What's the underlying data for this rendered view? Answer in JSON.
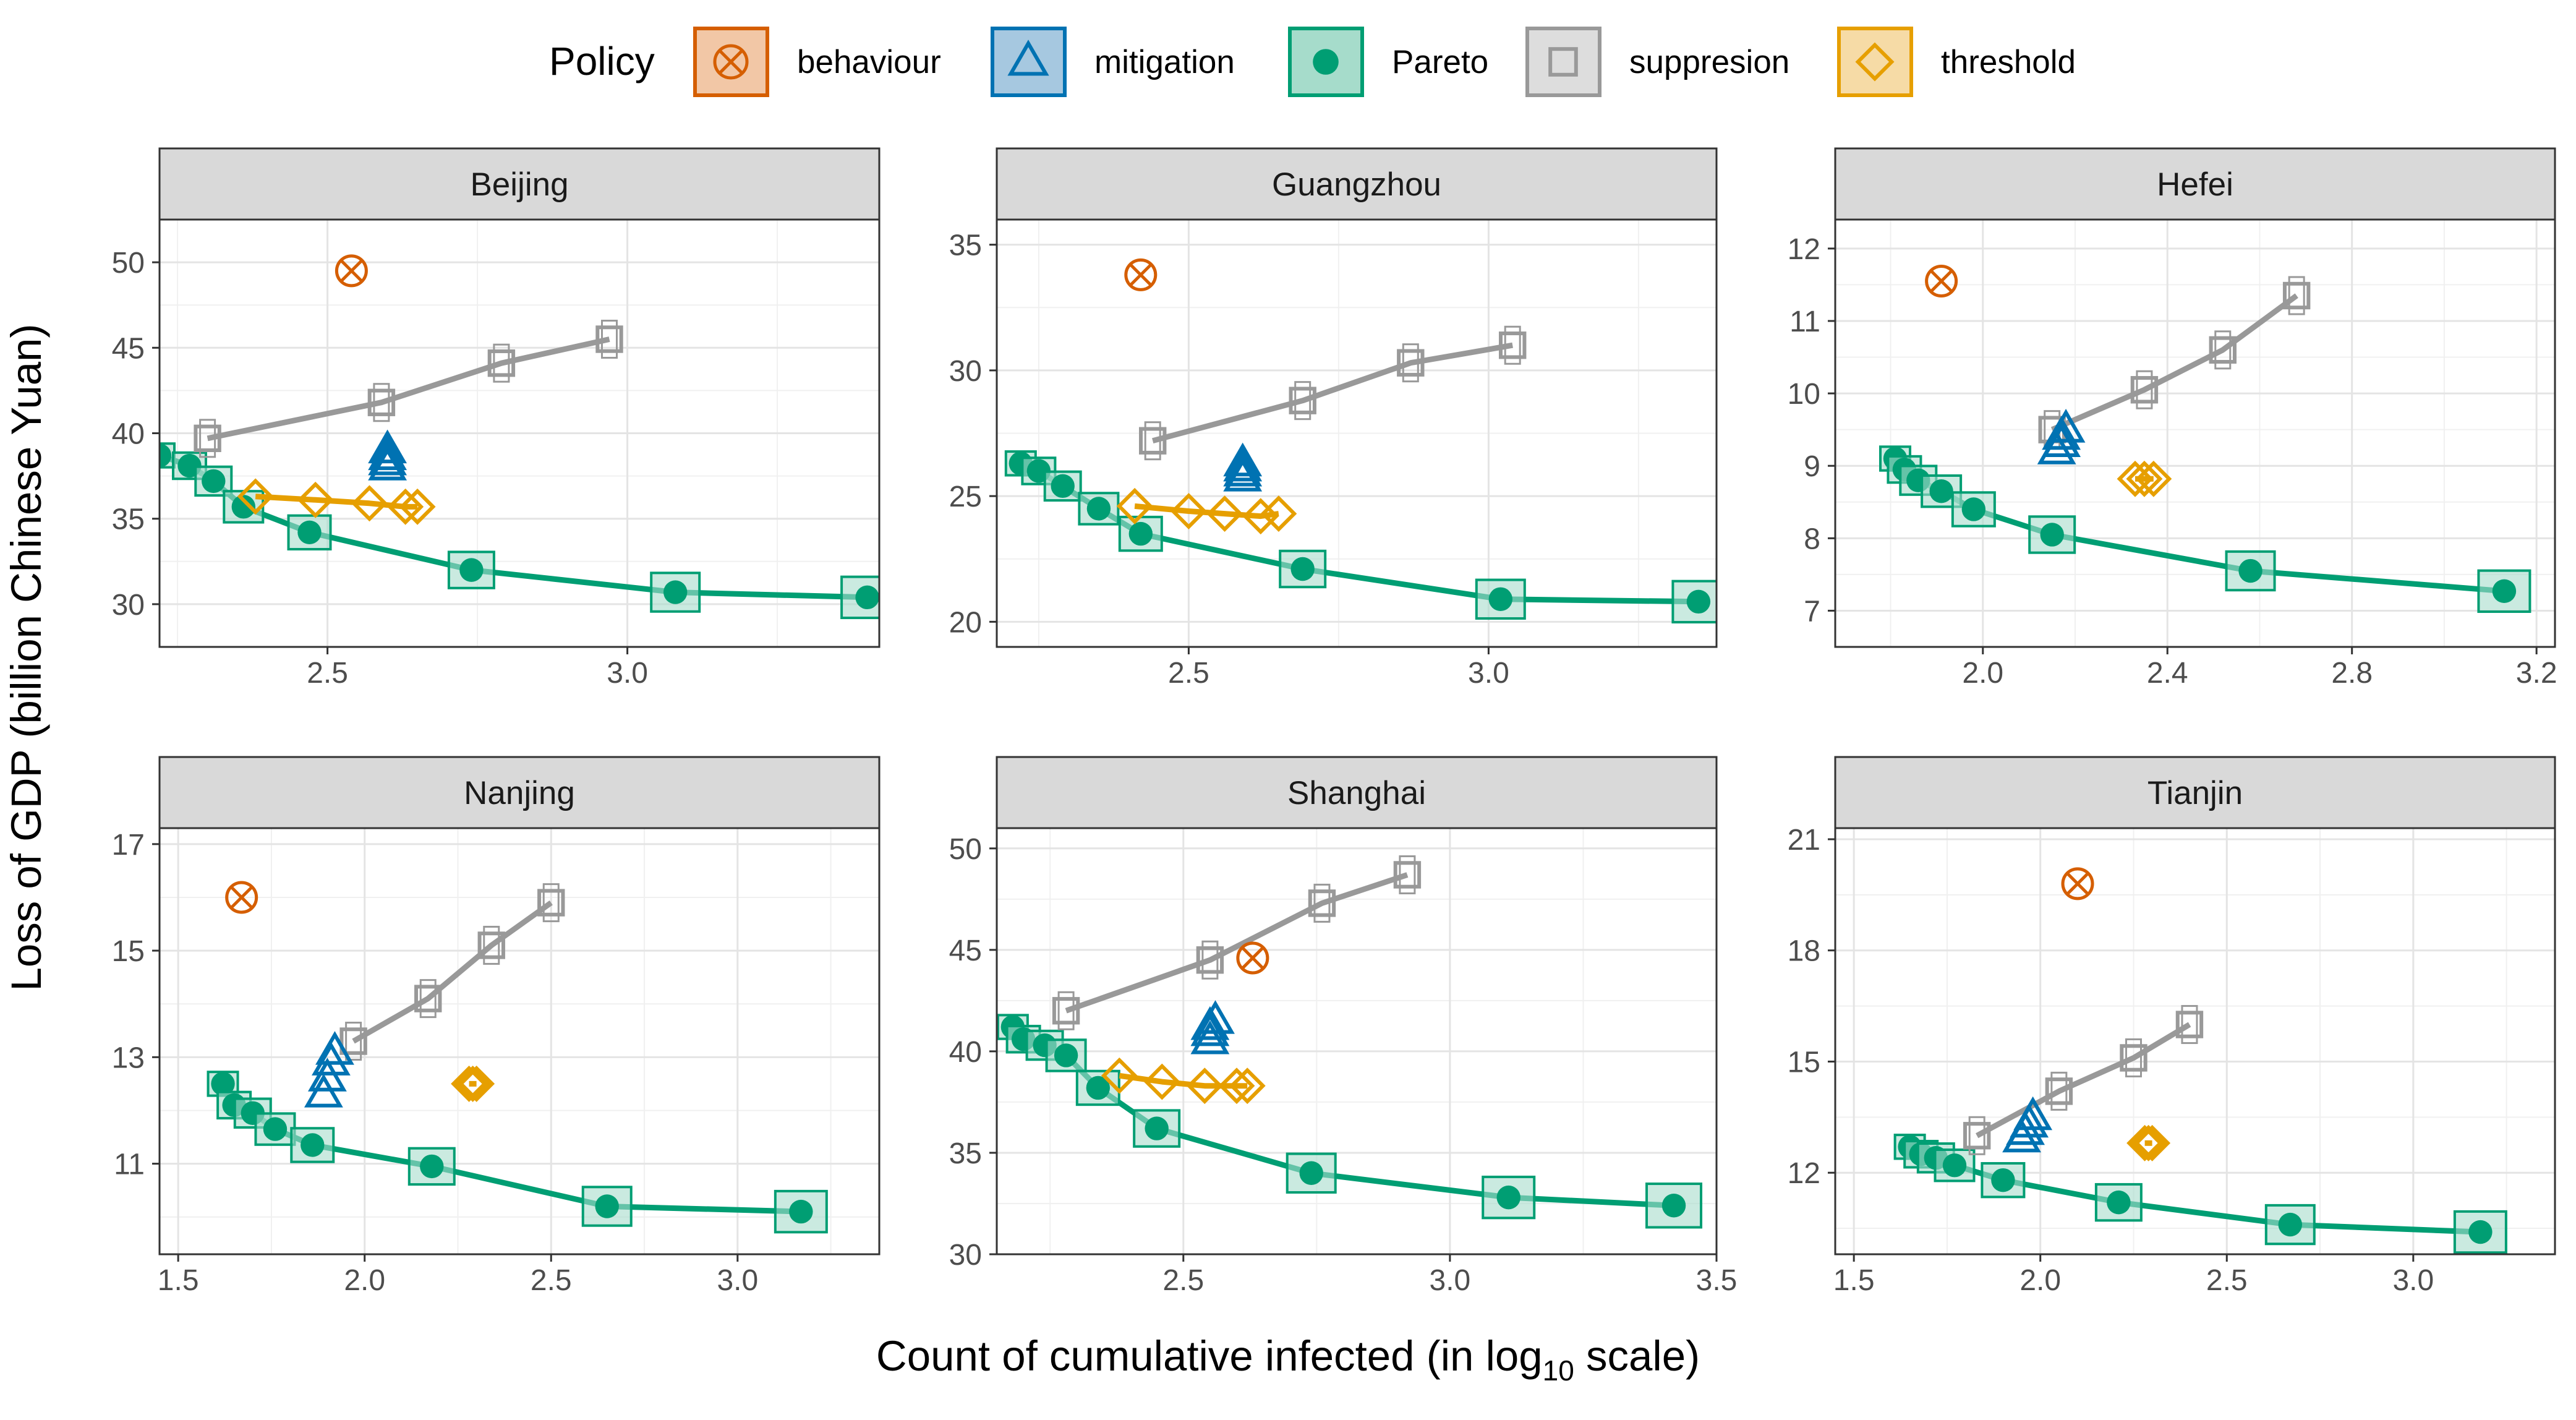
{
  "chart_data": {
    "type": "scatter",
    "title": "",
    "xlabel": "Count of cumulative infected (in log",
    "xlabel_sub": "10",
    "xlabel_suffix": " scale)",
    "ylabel": "Loss of GDP (billion Chinese Yuan)",
    "legend": {
      "title": "Policy",
      "placement": "top",
      "entries": [
        {
          "name": "behaviour",
          "color": "#D55E00",
          "fill": "#F2C7A6",
          "shape": "circle-x"
        },
        {
          "name": "mitigation",
          "color": "#0072B2",
          "fill": "#A6C8E0",
          "shape": "triangle"
        },
        {
          "name": "Pareto",
          "color": "#009E73",
          "fill": "#A6DCCB",
          "shape": "filled-circle"
        },
        {
          "name": "suppresion",
          "color": "#999999",
          "fill": "#DDDDDD",
          "shape": "square"
        },
        {
          "name": "threshold",
          "color": "#E69F00",
          "fill": "#F6DBA6",
          "shape": "diamond"
        }
      ]
    },
    "grid": true,
    "panels": [
      {
        "name": "Beijing",
        "xlim": [
          2.22,
          3.42
        ],
        "ylim": [
          27.5,
          52.5
        ],
        "xticks": [
          "2.5",
          "3.0"
        ],
        "xtick_values": [
          2.5,
          3.0
        ],
        "yticks": [
          "30",
          "35",
          "40",
          "45",
          "50"
        ],
        "ytick_values": [
          30,
          35,
          40,
          45,
          50
        ],
        "series": [
          {
            "name": "Pareto",
            "x": [
              2.22,
              2.27,
              2.31,
              2.36,
              2.47,
              2.74,
              3.08,
              3.4
            ],
            "y": [
              38.7,
              38.1,
              37.2,
              35.7,
              34.2,
              32.0,
              30.7,
              30.4
            ]
          },
          {
            "name": "suppresion",
            "x": [
              2.3,
              2.59,
              2.79,
              2.97
            ],
            "y": [
              39.7,
              41.8,
              44.1,
              45.5
            ]
          },
          {
            "name": "threshold",
            "x": [
              2.38,
              2.48,
              2.57,
              2.63,
              2.65
            ],
            "y": [
              36.3,
              36.1,
              35.9,
              35.7,
              35.7
            ]
          },
          {
            "name": "mitigation",
            "x": [
              2.6,
              2.6,
              2.6,
              2.6
            ],
            "y": [
              38.0,
              38.3,
              38.6,
              39.0
            ]
          },
          {
            "name": "behaviour",
            "x": [
              2.54
            ],
            "y": [
              49.5
            ]
          }
        ]
      },
      {
        "name": "Guangzhou",
        "xlim": [
          2.18,
          3.38
        ],
        "ylim": [
          19.0,
          36.0
        ],
        "xticks": [
          "2.5",
          "3.0"
        ],
        "xtick_values": [
          2.5,
          3.0
        ],
        "yticks": [
          "20",
          "25",
          "30",
          "35"
        ],
        "ytick_values": [
          20,
          25,
          30,
          35
        ],
        "series": [
          {
            "name": "Pareto",
            "x": [
              2.22,
              2.25,
              2.29,
              2.35,
              2.42,
              2.69,
              3.02,
              3.35
            ],
            "y": [
              26.3,
              26.0,
              25.4,
              24.5,
              23.5,
              22.1,
              20.9,
              20.8
            ]
          },
          {
            "name": "suppresion",
            "x": [
              2.44,
              2.69,
              2.87,
              3.04
            ],
            "y": [
              27.2,
              28.8,
              30.3,
              31.0
            ]
          },
          {
            "name": "threshold",
            "x": [
              2.41,
              2.5,
              2.56,
              2.62,
              2.65
            ],
            "y": [
              24.6,
              24.4,
              24.3,
              24.2,
              24.3
            ]
          },
          {
            "name": "mitigation",
            "x": [
              2.59,
              2.59,
              2.59,
              2.59
            ],
            "y": [
              25.7,
              25.9,
              26.1,
              26.3
            ]
          },
          {
            "name": "behaviour",
            "x": [
              2.42
            ],
            "y": [
              33.8
            ]
          }
        ]
      },
      {
        "name": "Hefei",
        "xlim": [
          1.68,
          3.24
        ],
        "ylim": [
          6.5,
          12.4
        ],
        "xticks": [
          "2.0",
          "2.4",
          "2.8",
          "3.2"
        ],
        "xtick_values": [
          2.0,
          2.4,
          2.8,
          3.2
        ],
        "yticks": [
          "7",
          "8",
          "9",
          "10",
          "11",
          "12"
        ],
        "ytick_values": [
          7,
          8,
          9,
          10,
          11,
          12
        ],
        "series": [
          {
            "name": "Pareto",
            "x": [
              1.81,
              1.83,
              1.86,
              1.91,
              1.98,
              2.15,
              2.58,
              3.13
            ],
            "y": [
              9.1,
              8.95,
              8.8,
              8.65,
              8.4,
              8.05,
              7.55,
              7.27
            ]
          },
          {
            "name": "suppresion",
            "x": [
              2.15,
              2.35,
              2.52,
              2.68
            ],
            "y": [
              9.5,
              10.05,
              10.6,
              11.35
            ]
          },
          {
            "name": "threshold",
            "x": [
              2.33,
              2.35,
              2.37
            ],
            "y": [
              8.82,
              8.82,
              8.82
            ]
          },
          {
            "name": "mitigation",
            "x": [
              2.16,
              2.17,
              2.17,
              2.18
            ],
            "y": [
              9.2,
              9.3,
              9.4,
              9.5
            ]
          },
          {
            "name": "behaviour",
            "x": [
              1.91
            ],
            "y": [
              11.55
            ]
          }
        ]
      },
      {
        "name": "Nanjing",
        "xlim": [
          1.45,
          3.38
        ],
        "ylim": [
          9.3,
          17.3
        ],
        "xticks": [
          "1.5",
          "2.0",
          "2.5",
          "3.0"
        ],
        "xtick_values": [
          1.5,
          2.0,
          2.5,
          3.0
        ],
        "yticks": [
          "11",
          "13",
          "15",
          "17"
        ],
        "ytick_values": [
          11,
          13,
          15,
          17
        ],
        "series": [
          {
            "name": "Pareto",
            "x": [
              1.62,
              1.65,
              1.7,
              1.76,
              1.86,
              2.18,
              2.65,
              3.17
            ],
            "y": [
              12.5,
              12.1,
              11.95,
              11.65,
              11.35,
              10.95,
              10.2,
              10.1
            ]
          },
          {
            "name": "suppresion",
            "x": [
              1.97,
              2.17,
              2.34,
              2.5
            ],
            "y": [
              13.3,
              14.1,
              15.1,
              15.9
            ]
          },
          {
            "name": "threshold",
            "x": [
              2.28,
              2.29,
              2.3
            ],
            "y": [
              12.5,
              12.5,
              12.5
            ]
          },
          {
            "name": "mitigation",
            "x": [
              1.89,
              1.9,
              1.91,
              1.92
            ],
            "y": [
              12.3,
              12.6,
              12.9,
              13.1
            ]
          },
          {
            "name": "behaviour",
            "x": [
              1.67
            ],
            "y": [
              16.0
            ]
          }
        ]
      },
      {
        "name": "Shanghai",
        "xlim": [
          2.15,
          3.5
        ],
        "ylim": [
          30.0,
          51.0
        ],
        "xticks": [
          "2.5",
          "3.0",
          "3.5"
        ],
        "xtick_values": [
          2.5,
          3.0,
          3.5
        ],
        "yticks": [
          "30",
          "35",
          "40",
          "45",
          "50"
        ],
        "ytick_values": [
          30,
          35,
          40,
          45,
          50
        ],
        "series": [
          {
            "name": "Pareto",
            "x": [
              2.18,
              2.2,
              2.24,
              2.28,
              2.34,
              2.45,
              2.74,
              3.11,
              3.42
            ],
            "y": [
              41.2,
              40.6,
              40.3,
              39.8,
              38.2,
              36.2,
              34.0,
              32.8,
              32.4
            ]
          },
          {
            "name": "suppresion",
            "x": [
              2.28,
              2.55,
              2.76,
              2.92
            ],
            "y": [
              42.0,
              44.5,
              47.3,
              48.7
            ]
          },
          {
            "name": "threshold",
            "x": [
              2.38,
              2.46,
              2.54,
              2.6,
              2.62
            ],
            "y": [
              38.8,
              38.5,
              38.3,
              38.3,
              38.3
            ]
          },
          {
            "name": "mitigation",
            "x": [
              2.55,
              2.55,
              2.55,
              2.56
            ],
            "y": [
              40.5,
              40.9,
              41.2,
              41.5
            ]
          },
          {
            "name": "behaviour",
            "x": [
              2.63
            ],
            "y": [
              44.6
            ]
          }
        ]
      },
      {
        "name": "Tianjin",
        "xlim": [
          1.45,
          3.38
        ],
        "ylim": [
          9.8,
          21.3
        ],
        "xticks": [
          "1.5",
          "2.0",
          "2.5",
          "3.0"
        ],
        "xtick_values": [
          1.5,
          2.0,
          2.5,
          3.0
        ],
        "yticks": [
          "12",
          "15",
          "18",
          "21"
        ],
        "ytick_values": [
          12,
          15,
          18,
          21
        ],
        "series": [
          {
            "name": "Pareto",
            "x": [
              1.65,
              1.68,
              1.72,
              1.77,
              1.9,
              2.21,
              2.67,
              3.18
            ],
            "y": [
              12.7,
              12.5,
              12.4,
              12.2,
              11.8,
              11.2,
              10.6,
              10.4
            ]
          },
          {
            "name": "suppresion",
            "x": [
              1.83,
              2.05,
              2.25,
              2.4
            ],
            "y": [
              13.0,
              14.2,
              15.1,
              16.0
            ]
          },
          {
            "name": "threshold",
            "x": [
              2.28,
              2.29,
              2.3
            ],
            "y": [
              12.8,
              12.8,
              12.8
            ]
          },
          {
            "name": "mitigation",
            "x": [
              1.95,
              1.96,
              1.97,
              1.98
            ],
            "y": [
              12.9,
              13.1,
              13.3,
              13.5
            ]
          },
          {
            "name": "behaviour",
            "x": [
              2.1
            ],
            "y": [
              19.8
            ]
          }
        ]
      }
    ]
  }
}
